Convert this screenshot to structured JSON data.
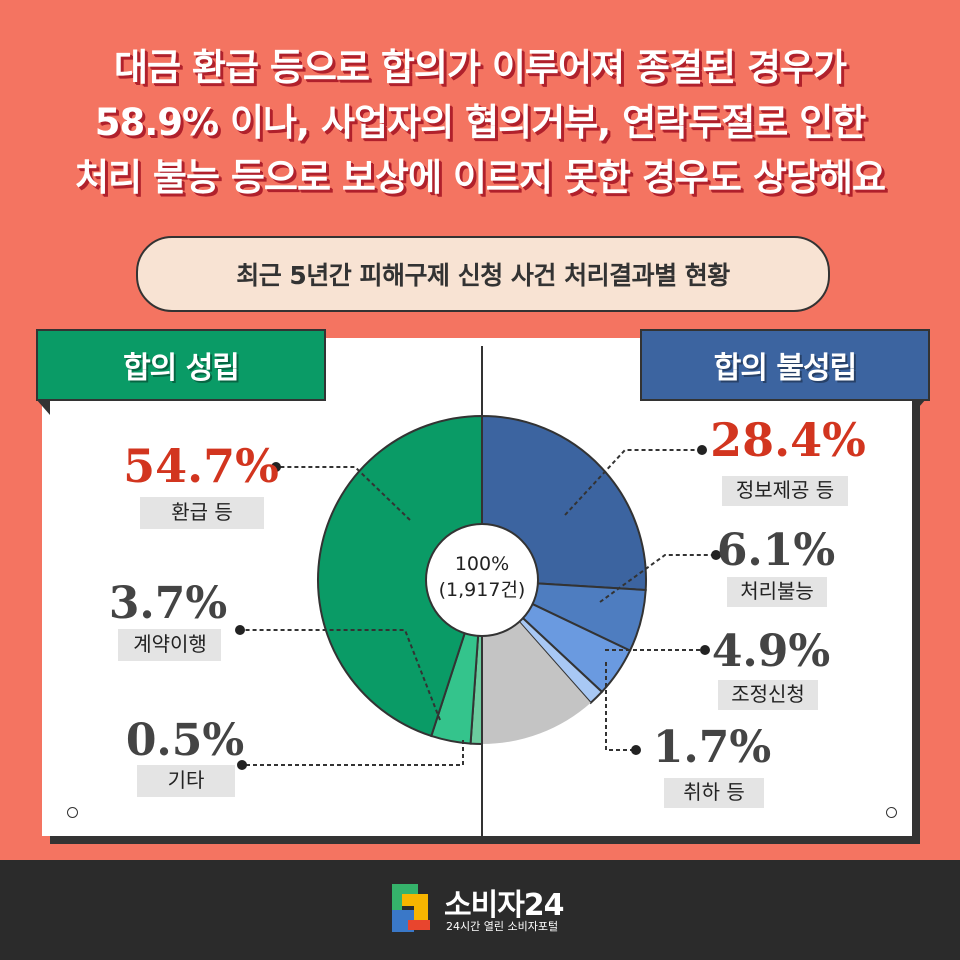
{
  "headline": {
    "lines": [
      "대금 환급 등으로 합의가 이루어져 종결된 경우가",
      "58.9% 이나, 사업자의 협의거부, 연락두절로 인한",
      "처리 불능 등으로 보상에 이르지 못한 경우도 상당해요"
    ]
  },
  "subtitle": "최근 5년간 피해구제 신청 사건 처리결과별 현황",
  "tabs": {
    "agreed": "합의 성립",
    "not_agreed": "합의 불성립"
  },
  "center": {
    "line1": "100%",
    "line2": "(1,917건)"
  },
  "colors": {
    "background": "#f47461",
    "agreed_tab": "#0a9b66",
    "not_agreed_tab": "#3c64a0",
    "highlight_pct": "#d2351f",
    "pct": "#444444"
  },
  "chart_data": {
    "type": "pie",
    "total_label": "100%",
    "total_count_label": "(1,917건)",
    "slices": [
      {
        "group": "합의 불성립",
        "label": "정보제공 등",
        "value": 28.4,
        "value_label": "28.4%",
        "color": "#3c64a0",
        "highlight": true
      },
      {
        "group": "합의 불성립",
        "label": "처리불능",
        "value": 6.1,
        "value_label": "6.1%",
        "color": "#4e7dc0",
        "highlight": false
      },
      {
        "group": "합의 불성립",
        "label": "조정신청",
        "value": 4.9,
        "value_label": "4.9%",
        "color": "#6a9ae0",
        "highlight": false
      },
      {
        "group": "합의 불성립",
        "label": "취하 등",
        "value": 1.7,
        "value_label": "1.7%",
        "color": "#a8c8f4",
        "highlight": false
      },
      {
        "group": "",
        "label": "",
        "value": 0.0,
        "value_label": "",
        "color": "#c4c4c4",
        "highlight": false
      },
      {
        "group": "합의 성립",
        "label": "기타",
        "value": 0.5,
        "value_label": "0.5%",
        "color": "#6bcc9e",
        "highlight": false
      },
      {
        "group": "합의 성립",
        "label": "계약이행",
        "value": 3.7,
        "value_label": "3.7%",
        "color": "#34c48c",
        "highlight": false
      },
      {
        "group": "합의 성립",
        "label": "환급 등",
        "value": 54.7,
        "value_label": "54.7%",
        "color": "#0a9b66",
        "highlight": true
      }
    ]
  },
  "footer": {
    "brand": "소비자24",
    "tagline": "24시간 열린 소비자포털"
  }
}
